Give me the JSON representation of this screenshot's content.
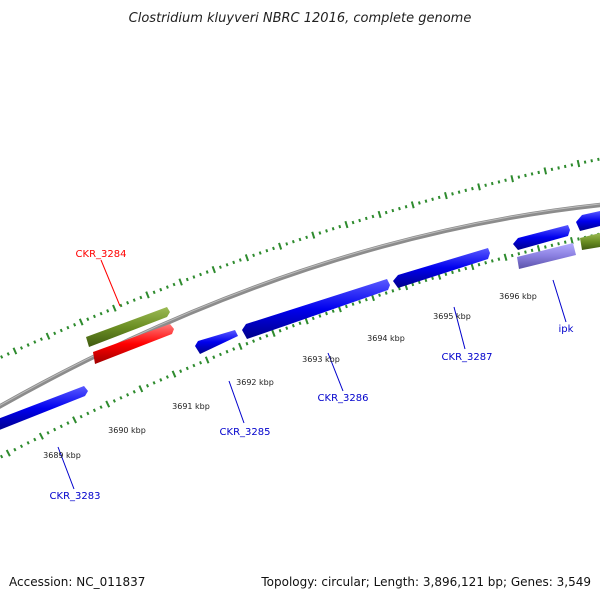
{
  "title": "Clostridium kluyveri NBRC 12016, complete genome",
  "footer": {
    "accession": "Accession: NC_011837",
    "summary": "Topology: circular; Length: 3,896,121 bp; Genes: 3,549"
  },
  "position_labels": [
    "3689 kbp",
    "3690 kbp",
    "3691 kbp",
    "3692 kbp",
    "3693 kbp",
    "3694 kbp",
    "3695 kbp",
    "3696 kbp"
  ],
  "gene_labels": [
    {
      "name": "CKR_3284",
      "color": "#ff0000"
    },
    {
      "name": "CKR_3283",
      "color": "#0000cc"
    },
    {
      "name": "CKR_3285",
      "color": "#0000cc"
    },
    {
      "name": "CKR_3286",
      "color": "#0000cc"
    },
    {
      "name": "CKR_3287",
      "color": "#0000cc"
    },
    {
      "name": "ipk",
      "color": "#0000cc"
    }
  ],
  "colors": {
    "backbone": "#8c8c8c",
    "cds_forward": "#0000ee",
    "cds_highlight": "#ff0000",
    "cds_other": "#6b8e23",
    "cds_ipk": "#8a7fe0",
    "ticks": "#2e8b2e"
  }
}
